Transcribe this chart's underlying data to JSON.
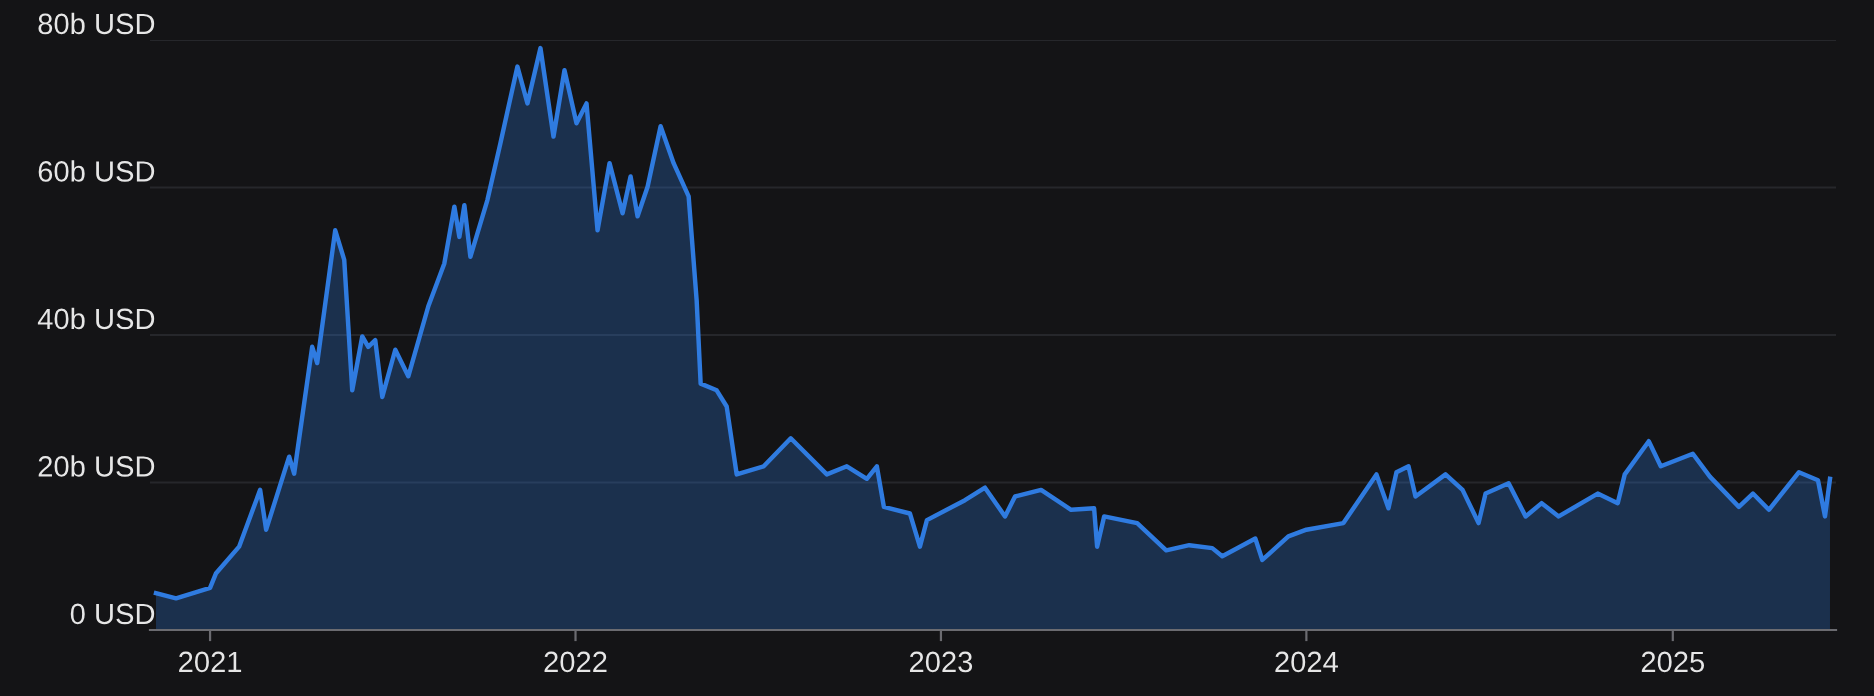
{
  "chart_data": {
    "type": "area",
    "x": [
      "2020-11-08",
      "2020-11-28",
      "2021-01-01",
      "2021-01-07",
      "2021-01-30",
      "2021-02-20",
      "2021-02-26",
      "2021-03-21",
      "2021-03-26",
      "2021-04-13",
      "2021-04-18",
      "2021-05-06",
      "2021-05-15",
      "2021-05-23",
      "2021-06-02",
      "2021-06-08",
      "2021-06-15",
      "2021-06-22",
      "2021-07-05",
      "2021-07-18",
      "2021-08-07",
      "2021-08-23",
      "2021-09-02",
      "2021-09-07",
      "2021-09-12",
      "2021-09-18",
      "2021-10-05",
      "2021-10-18",
      "2021-11-04",
      "2021-11-14",
      "2021-11-27",
      "2021-12-10",
      "2021-12-21",
      "2022-01-02",
      "2022-01-12",
      "2022-01-23",
      "2022-02-04",
      "2022-02-17",
      "2022-02-25",
      "2022-03-04",
      "2022-03-14",
      "2022-03-27",
      "2022-04-09",
      "2022-04-24",
      "2022-05-02",
      "2022-05-06",
      "2022-05-22",
      "2022-06-01",
      "2022-06-11",
      "2022-07-08",
      "2022-08-04",
      "2022-09-09",
      "2022-09-29",
      "2022-10-19",
      "2022-10-29",
      "2022-11-05",
      "2022-12-01",
      "2022-12-11",
      "2022-12-18",
      "2023-01-25",
      "2023-02-14",
      "2023-03-06",
      "2023-03-16",
      "2023-04-11",
      "2023-05-11",
      "2023-06-03",
      "2023-06-06",
      "2023-06-13",
      "2023-07-16",
      "2023-08-14",
      "2023-09-06",
      "2023-09-29",
      "2023-10-09",
      "2023-11-11",
      "2023-11-18",
      "2023-12-14",
      "2024-01-01",
      "2024-02-07",
      "2024-03-11",
      "2024-03-23",
      "2024-03-31",
      "2024-04-12",
      "2024-04-19",
      "2024-05-19",
      "2024-06-05",
      "2024-06-21",
      "2024-06-28",
      "2024-07-21",
      "2024-08-07",
      "2024-08-23",
      "2024-09-09",
      "2024-10-18",
      "2024-11-07",
      "2024-11-14",
      "2024-12-08",
      "2024-12-20",
      "2025-01-21",
      "2025-02-07",
      "2025-03-08",
      "2025-03-22",
      "2025-04-07",
      "2025-05-07",
      "2025-05-26",
      "2025-06-02",
      "2025-06-07"
    ],
    "series": [
      {
        "color": "#2f7be0",
        "values": [
          5.0,
          4.3,
          5.7,
          7.7,
          11.3,
          19.0,
          13.6,
          23.5,
          21.2,
          38.4,
          36.2,
          54.2,
          50.2,
          32.5,
          39.8,
          38.4,
          39.3,
          31.6,
          38.0,
          34.4,
          43.9,
          49.7,
          57.4,
          53.3,
          57.6,
          50.6,
          58.3,
          66.0,
          76.4,
          71.4,
          78.9,
          66.9,
          75.9,
          68.7,
          71.4,
          54.2,
          63.3,
          56.5,
          61.5,
          56.1,
          60.1,
          68.3,
          63.3,
          58.8,
          44.7,
          33.4,
          32.5,
          30.3,
          21.1,
          22.2,
          26.0,
          21.1,
          22.2,
          20.5,
          22.2,
          16.7,
          15.8,
          11.3,
          14.9,
          17.6,
          19.3,
          15.4,
          18.1,
          19.0,
          16.3,
          16.5,
          11.3,
          15.4,
          14.5,
          10.8,
          11.5,
          11.1,
          10.0,
          12.4,
          9.5,
          12.7,
          13.6,
          14.5,
          21.1,
          16.5,
          21.4,
          22.2,
          18.1,
          21.1,
          19.0,
          14.5,
          18.5,
          19.9,
          15.4,
          17.2,
          15.4,
          18.5,
          17.2,
          21.1,
          25.6,
          22.2,
          23.9,
          20.8,
          16.7,
          18.5,
          16.3,
          21.4,
          20.3,
          15.4,
          20.5
        ]
      }
    ],
    "xlim": [
      "2020-11-02",
      "2025-06-13"
    ],
    "xticks": [
      {
        "value": "2021-01-01",
        "label": "2021"
      },
      {
        "value": "2022-01-01",
        "label": "2022"
      },
      {
        "value": "2023-01-01",
        "label": "2023"
      },
      {
        "value": "2024-01-01",
        "label": "2024"
      },
      {
        "value": "2025-01-01",
        "label": "2025"
      }
    ],
    "ylim": [
      0,
      80
    ],
    "yticks": [
      {
        "value": 0,
        "label": "0 USD"
      },
      {
        "value": 20,
        "label": "20b USD"
      },
      {
        "value": 40,
        "label": "40b USD"
      },
      {
        "value": 60,
        "label": "60b USD"
      },
      {
        "value": 80,
        "label": "80b USD"
      }
    ],
    "grid": "y"
  }
}
